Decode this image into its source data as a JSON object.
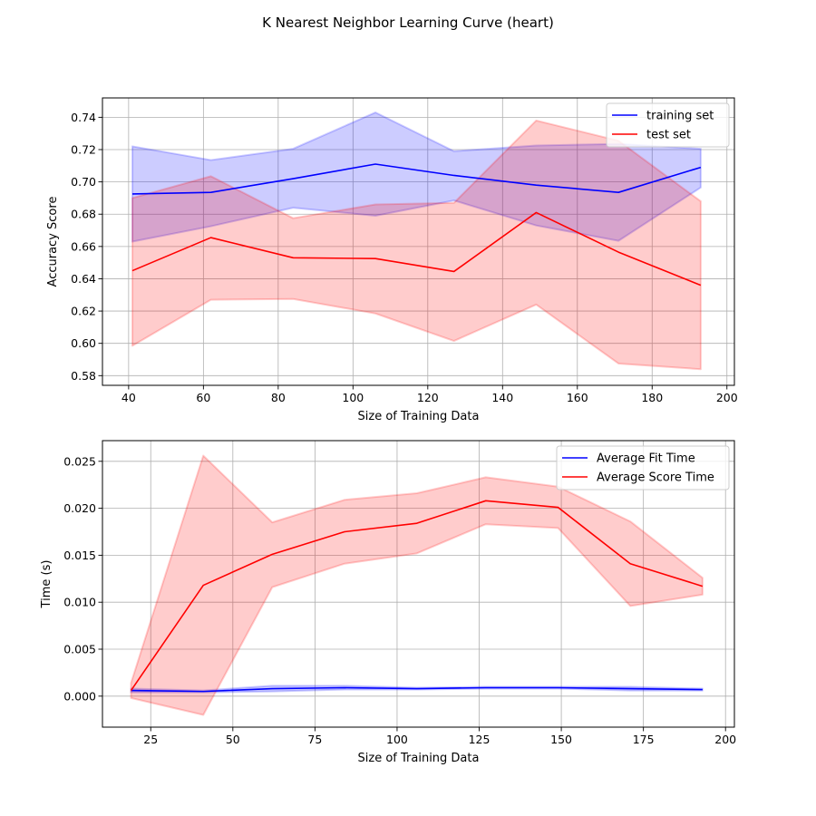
{
  "figure": {
    "suptitle": "K Nearest Neighbor Learning Curve (heart)"
  },
  "chart_data": [
    {
      "type": "line",
      "title": "",
      "xlabel": "Size of Training Data",
      "ylabel": "Accuracy Score",
      "xlim": [
        33,
        202
      ],
      "ylim": [
        0.574,
        0.752
      ],
      "xticks": [
        40,
        60,
        80,
        100,
        120,
        140,
        160,
        180,
        200
      ],
      "xtick_labels": [
        "40",
        "60",
        "80",
        "100",
        "120",
        "140",
        "160",
        "180",
        "200"
      ],
      "yticks": [
        0.58,
        0.6,
        0.62,
        0.64,
        0.66,
        0.68,
        0.7,
        0.72,
        0.74
      ],
      "ytick_labels": [
        "0.58",
        "0.60",
        "0.62",
        "0.64",
        "0.66",
        "0.68",
        "0.70",
        "0.72",
        "0.74"
      ],
      "grid": true,
      "legend_position": "top-right",
      "x": [
        41,
        62,
        84,
        106,
        127,
        149,
        171,
        193
      ],
      "series": [
        {
          "name": "training set",
          "color": "#0000ff",
          "band_color": "#0000ff",
          "values": [
            0.6925,
            0.6935,
            0.702,
            0.711,
            0.704,
            0.698,
            0.6935,
            0.709
          ],
          "upper": [
            0.722,
            0.7135,
            0.7205,
            0.743,
            0.719,
            0.7225,
            0.7235,
            0.7205
          ],
          "lower": [
            0.663,
            0.6725,
            0.684,
            0.679,
            0.6885,
            0.673,
            0.6635,
            0.6965
          ]
        },
        {
          "name": "test set",
          "color": "#ff0000",
          "band_color": "#ff0000",
          "values": [
            0.645,
            0.6655,
            0.653,
            0.6525,
            0.6445,
            0.681,
            0.6565,
            0.636
          ],
          "upper": [
            0.69,
            0.7035,
            0.6775,
            0.686,
            0.687,
            0.738,
            0.7255,
            0.688
          ],
          "lower": [
            0.5985,
            0.627,
            0.6275,
            0.6185,
            0.6015,
            0.624,
            0.5875,
            0.584
          ]
        }
      ]
    },
    {
      "type": "line",
      "title": "",
      "xlabel": "Size of Training Data",
      "ylabel": "Time (s)",
      "xlim": [
        10.3,
        202.7
      ],
      "ylim": [
        -0.0033,
        0.0272
      ],
      "xticks": [
        25,
        50,
        75,
        100,
        125,
        150,
        175,
        200
      ],
      "xtick_labels": [
        "25",
        "50",
        "75",
        "100",
        "125",
        "150",
        "175",
        "200"
      ],
      "yticks": [
        0.0,
        0.005,
        0.01,
        0.015,
        0.02,
        0.025
      ],
      "ytick_labels": [
        "0.000",
        "0.005",
        "0.010",
        "0.015",
        "0.020",
        "0.025"
      ],
      "grid": true,
      "legend_position": "top-right",
      "x": [
        19,
        41,
        62,
        84,
        106,
        127,
        149,
        171,
        193
      ],
      "series": [
        {
          "name": "Average Fit Time",
          "color": "#0000ff",
          "band_color": "#0000ff",
          "values": [
            0.0006,
            0.0005,
            0.0008,
            0.0009,
            0.0008,
            0.0009,
            0.0009,
            0.0008,
            0.0007
          ],
          "upper": [
            0.0008,
            0.0006,
            0.0011,
            0.0011,
            0.0009,
            0.001,
            0.001,
            0.001,
            0.0008
          ],
          "lower": [
            0.0004,
            0.0004,
            0.0005,
            0.0007,
            0.0007,
            0.0008,
            0.0008,
            0.0006,
            0.0006
          ]
        },
        {
          "name": "Average Score Time",
          "color": "#ff0000",
          "band_color": "#ff0000",
          "values": [
            0.0006,
            0.0118,
            0.0151,
            0.0175,
            0.0184,
            0.0208,
            0.0201,
            0.0141,
            0.0117
          ],
          "upper": [
            0.0014,
            0.0256,
            0.0185,
            0.0209,
            0.0216,
            0.0233,
            0.0223,
            0.0186,
            0.0126
          ],
          "lower": [
            -0.0002,
            -0.002,
            0.0116,
            0.0141,
            0.0152,
            0.0183,
            0.0179,
            0.0096,
            0.0108
          ]
        }
      ]
    }
  ]
}
